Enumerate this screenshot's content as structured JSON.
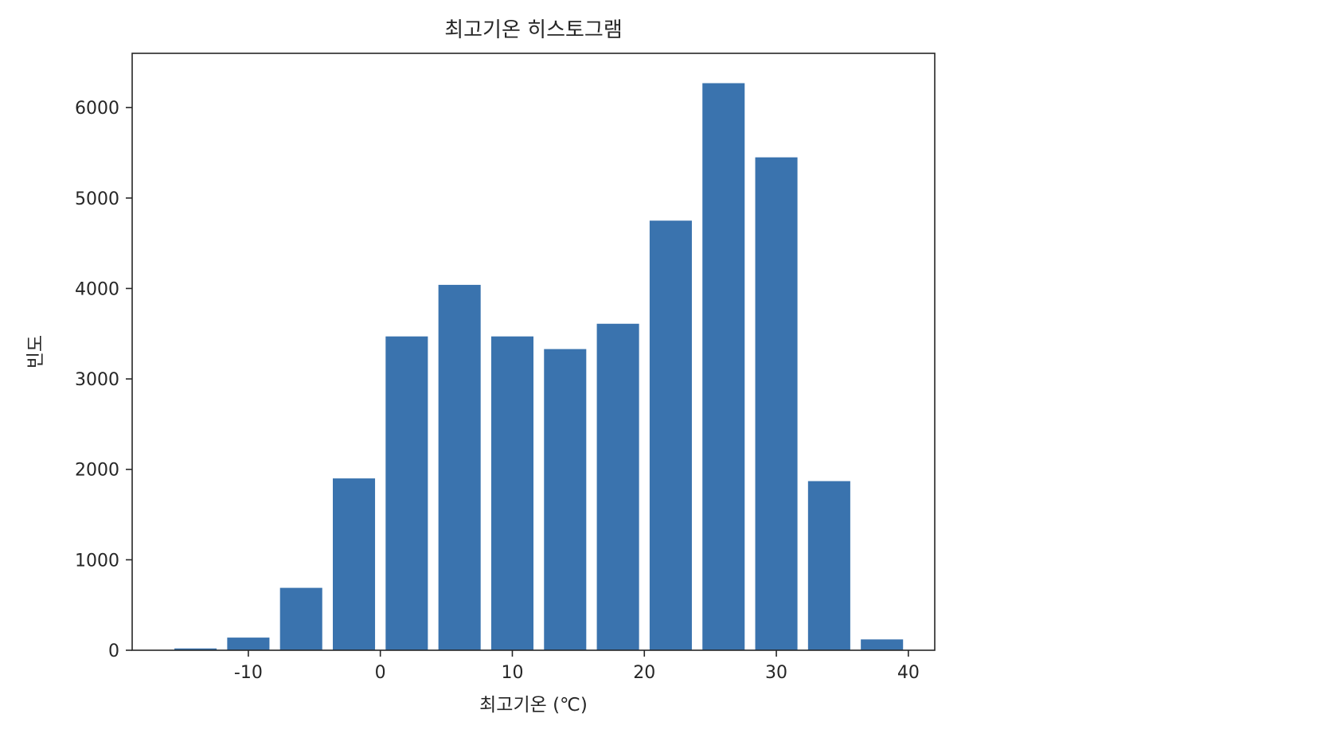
{
  "chart_data": {
    "type": "bar",
    "title": "최고기온 히스토그램",
    "xlabel": "최고기온 (℃)",
    "ylabel": "빈도",
    "bin_edges": [
      -16,
      -12,
      -8,
      -4,
      0,
      4,
      8,
      12,
      16,
      20,
      24,
      28,
      32,
      36,
      40
    ],
    "values": [
      20,
      140,
      690,
      1900,
      3470,
      4040,
      3470,
      3330,
      3610,
      4750,
      6270,
      5450,
      1870,
      120
    ],
    "xlim": [
      -18.8,
      42
    ],
    "ylim": [
      0,
      6600
    ],
    "xticks": [
      -10,
      0,
      10,
      20,
      30,
      40
    ],
    "yticks": [
      0,
      1000,
      2000,
      3000,
      4000,
      5000,
      6000
    ],
    "rwidth": 0.8,
    "grid": false,
    "legend": "none",
    "bar_color": "#3a73ae"
  }
}
